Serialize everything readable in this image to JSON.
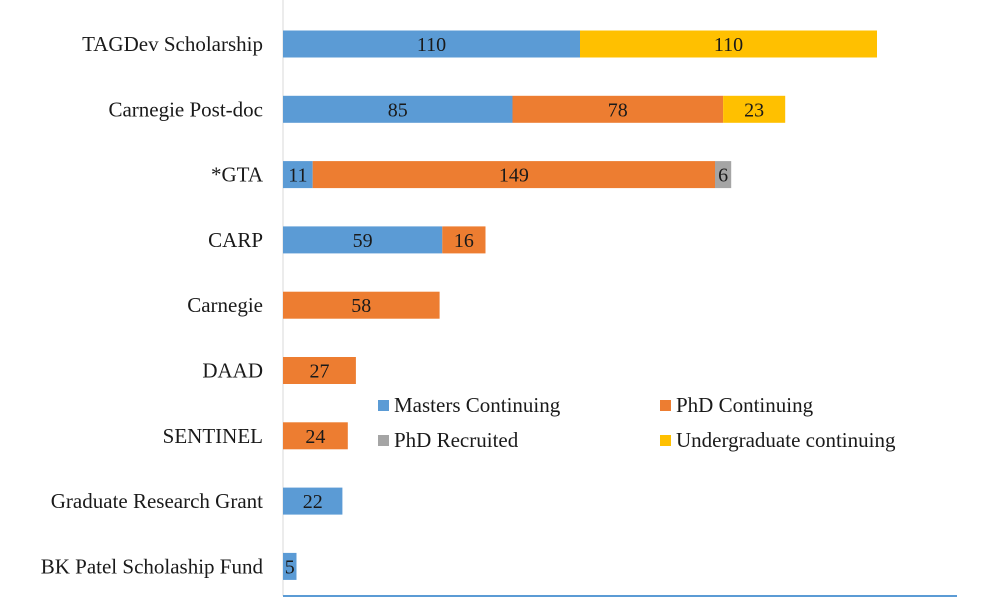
{
  "chart_data": {
    "type": "bar",
    "orientation": "horizontal",
    "stacked": true,
    "title": "",
    "xlabel": "",
    "ylabel": "",
    "xlim": [
      0,
      228
    ],
    "grid": false,
    "legend_position": "center-right",
    "categories": [
      "TAGDev Scholarship",
      "Carnegie Post-doc",
      "*GTA",
      "CARP",
      "Carnegie",
      "DAAD",
      "SENTINEL",
      "Graduate Research Grant",
      "BK Patel Scholaship Fund"
    ],
    "series": [
      {
        "name": "Masters Continuing",
        "color": "#5B9BD5",
        "values": [
          110,
          85,
          11,
          59,
          null,
          null,
          null,
          22,
          5
        ]
      },
      {
        "name": "PhD Continuing",
        "color": "#ED7D31",
        "values": [
          null,
          78,
          149,
          16,
          58,
          27,
          24,
          null,
          null
        ]
      },
      {
        "name": "PhD Recruited",
        "color": "#A5A5A5",
        "values": [
          null,
          null,
          6,
          null,
          null,
          null,
          null,
          null,
          null
        ]
      },
      {
        "name": "Undergraduate continuing",
        "color": "#FFC000",
        "values": [
          110,
          23,
          null,
          null,
          null,
          null,
          null,
          null,
          null
        ]
      }
    ],
    "legend_order": [
      "Masters Continuing",
      "PhD Continuing",
      "PhD Recruited",
      "Undergraduate continuing"
    ],
    "axis_color": "#5B9BD5"
  }
}
